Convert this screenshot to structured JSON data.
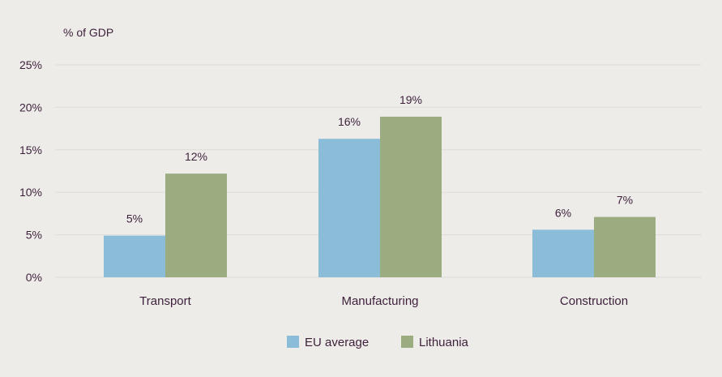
{
  "chart_data": {
    "type": "bar",
    "unit_label": "% of GDP",
    "categories": [
      "Transport",
      "Manufacturing",
      "Construction"
    ],
    "series": [
      {
        "name": "EU average",
        "color": "#8bbdd9",
        "values": [
          4.9,
          16.3,
          5.6
        ],
        "labels": [
          "5%",
          "16%",
          "6%"
        ]
      },
      {
        "name": "Lithuania",
        "color": "#9aac80",
        "values": [
          12.2,
          18.9,
          7.1
        ],
        "labels": [
          "12%",
          "19%",
          "7%"
        ]
      }
    ],
    "ylim": [
      0,
      25
    ],
    "yticks": [
      {
        "value": 0,
        "label": "0%"
      },
      {
        "value": 5,
        "label": "5%"
      },
      {
        "value": 10,
        "label": "10%"
      },
      {
        "value": 15,
        "label": "15%"
      },
      {
        "value": 20,
        "label": "20%"
      },
      {
        "value": 25,
        "label": "25%"
      }
    ],
    "grid": true,
    "legend_position": "bottom-center"
  },
  "colors": {
    "background": "#edece9",
    "gridline": "#dddcd8",
    "text": "#3d1f3a"
  }
}
